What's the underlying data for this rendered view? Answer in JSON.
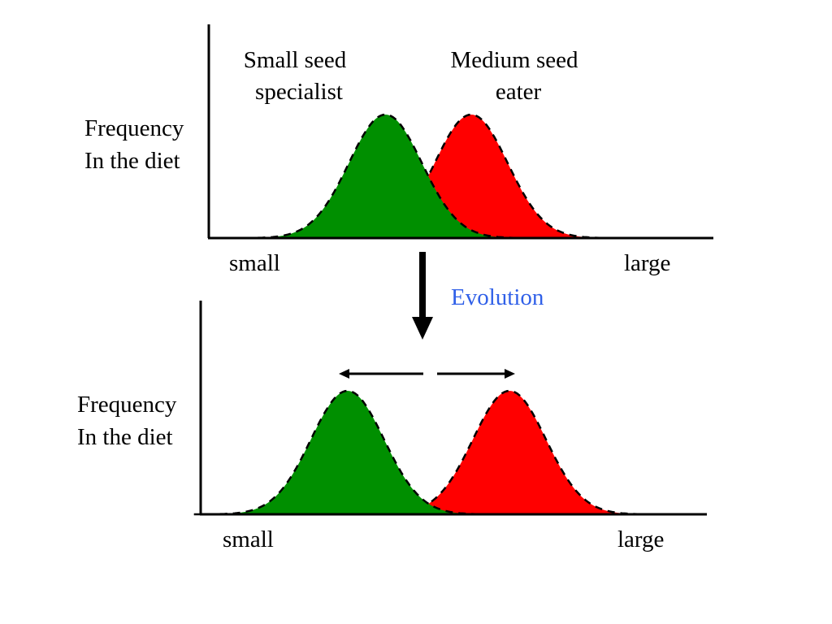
{
  "top_panel": {
    "y_label": [
      "Frequency",
      "In the diet"
    ],
    "x_min_label": "small",
    "x_max_label": "large",
    "curves": [
      {
        "name_lines": [
          "Small seed",
          "specialist"
        ],
        "color": "#008f00",
        "peak_seed_size": 0.35
      },
      {
        "name_lines": [
          "Medium seed",
          "eater"
        ],
        "color": "#ff0000",
        "peak_seed_size": 0.52
      }
    ]
  },
  "evolution": {
    "label": "Evolution",
    "label_color": "#3060e8",
    "arrow": "down-arrow",
    "divergence_arrows": [
      "left-arrow",
      "right-arrow"
    ]
  },
  "bottom_panel": {
    "y_label": [
      "Frequency",
      "In the diet"
    ],
    "x_min_label": "small",
    "x_max_label": "large",
    "curves": [
      {
        "color": "#008f00",
        "peak_seed_size": 0.29
      },
      {
        "color": "#ff0000",
        "peak_seed_size": 0.61
      }
    ]
  }
}
